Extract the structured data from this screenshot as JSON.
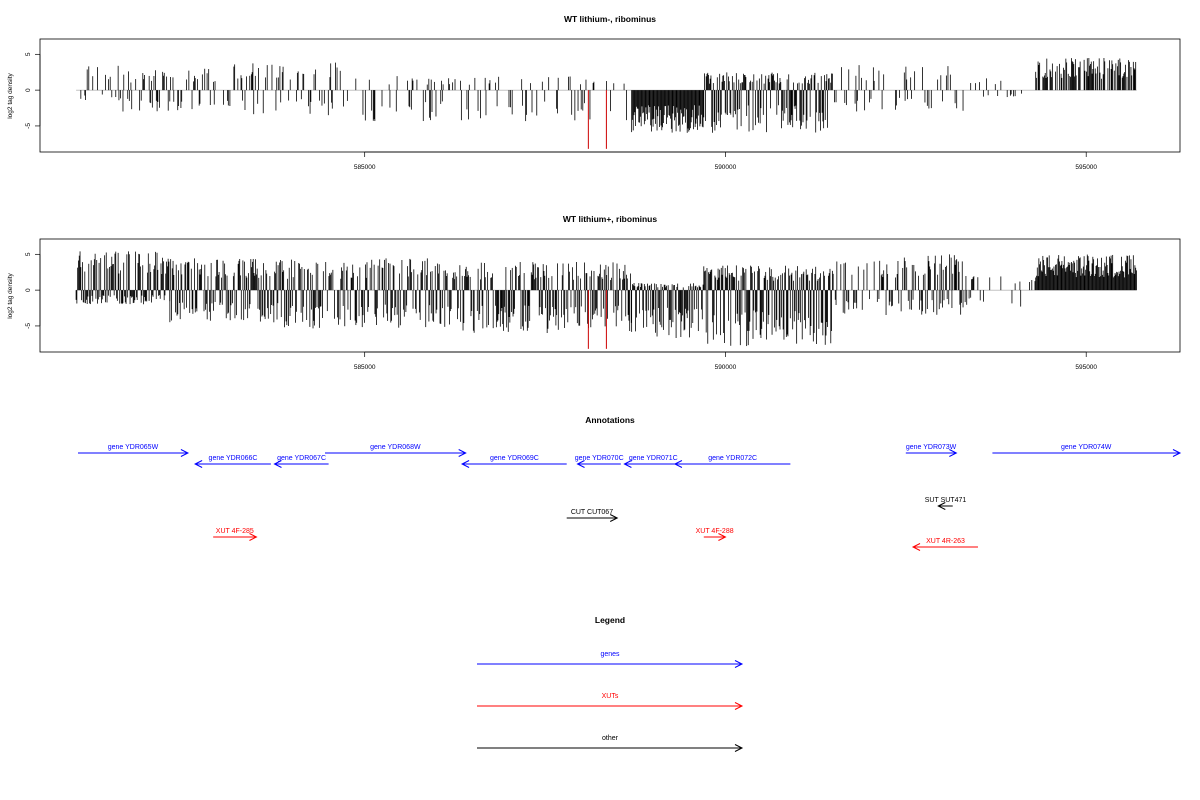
{
  "colors": {
    "gene": "#0000ff",
    "xut": "#ff0000",
    "other": "#000000",
    "bar": "#000000",
    "highlight": "#cc0000"
  },
  "x_axis": {
    "ticks": [
      585000,
      590000,
      595000
    ],
    "tick_labels": [
      "585000",
      "590000",
      "595000"
    ],
    "range": [
      580500,
      596300
    ]
  },
  "chart_data": [
    {
      "type": "bar",
      "title": "WT lithium-, ribominus",
      "ylabel": "log2 tag density",
      "ylim": [
        -8.5,
        7
      ],
      "yticks": [
        -5,
        0,
        5
      ],
      "ytick_labels": [
        "-5",
        "0",
        "5"
      ],
      "highlight_bars": [
        {
          "x": 588100,
          "value": -8.2
        },
        {
          "x": 588350,
          "value": -8.2
        }
      ],
      "density_profile": [
        {
          "start": 581000,
          "end": 581650,
          "density": 0.3,
          "up": 3.5,
          "down": 1.5
        },
        {
          "start": 581650,
          "end": 583000,
          "density": 0.5,
          "up": 3.0,
          "down": 3.0
        },
        {
          "start": 583000,
          "end": 584800,
          "density": 0.4,
          "up": 4.0,
          "down": 3.5
        },
        {
          "start": 584800,
          "end": 588700,
          "density": 0.25,
          "up": 2.0,
          "down": 4.5
        },
        {
          "start": 588700,
          "end": 589700,
          "density": 1.0,
          "up": 0.5,
          "down": 6.0
        },
        {
          "start": 589700,
          "end": 591500,
          "density": 0.9,
          "up": 2.5,
          "down": 6.0
        },
        {
          "start": 591500,
          "end": 593300,
          "density": 0.3,
          "up": 3.5,
          "down": 3.0
        },
        {
          "start": 593300,
          "end": 594300,
          "density": 0.15,
          "up": 2.0,
          "down": 1.0
        },
        {
          "start": 594300,
          "end": 595700,
          "density": 0.7,
          "up": 4.5,
          "down": 0.3
        }
      ]
    },
    {
      "type": "bar",
      "title": "WT lithium+, ribominus",
      "ylabel": "log2 tag density",
      "ylim": [
        -8.5,
        7
      ],
      "yticks": [
        -5,
        0,
        5
      ],
      "ytick_labels": [
        "-5",
        "0",
        "5"
      ],
      "highlight_bars": [
        {
          "x": 588100,
          "value": -8.2
        },
        {
          "x": 588350,
          "value": -8.2
        }
      ],
      "density_profile": [
        {
          "start": 581000,
          "end": 582300,
          "density": 1.0,
          "up": 5.5,
          "down": 2.0
        },
        {
          "start": 582300,
          "end": 583800,
          "density": 0.9,
          "up": 4.5,
          "down": 4.5
        },
        {
          "start": 583800,
          "end": 586000,
          "density": 0.8,
          "up": 4.5,
          "down": 5.5
        },
        {
          "start": 586000,
          "end": 588700,
          "density": 0.8,
          "up": 4.0,
          "down": 6.0
        },
        {
          "start": 588700,
          "end": 589700,
          "density": 1.0,
          "up": 1.0,
          "down": 7.0
        },
        {
          "start": 589700,
          "end": 591500,
          "density": 1.0,
          "up": 3.5,
          "down": 8.0
        },
        {
          "start": 591500,
          "end": 593300,
          "density": 0.6,
          "up": 5.0,
          "down": 3.5
        },
        {
          "start": 593300,
          "end": 594300,
          "density": 0.2,
          "up": 2.0,
          "down": 2.5
        },
        {
          "start": 594300,
          "end": 595700,
          "density": 1.0,
          "up": 5.0,
          "down": 0.5
        }
      ]
    }
  ],
  "annotations": {
    "title": "Annotations",
    "features": [
      {
        "label": "gene YDR065W",
        "type": "gene",
        "start": 580450,
        "end": 582550,
        "strand": "+",
        "row": 0
      },
      {
        "label": "gene YDR066C",
        "type": "gene",
        "start": 582650,
        "end": 583700,
        "strand": "-",
        "row": 1
      },
      {
        "label": "gene YDR067C",
        "type": "gene",
        "start": 583750,
        "end": 584500,
        "strand": "-",
        "row": 1
      },
      {
        "label": "gene YDR068W",
        "type": "gene",
        "start": 584450,
        "end": 586400,
        "strand": "+",
        "row": 0
      },
      {
        "label": "gene YDR069C",
        "type": "gene",
        "start": 586350,
        "end": 587800,
        "strand": "-",
        "row": 1
      },
      {
        "label": "gene YDR070C",
        "type": "gene",
        "start": 587950,
        "end": 588550,
        "strand": "-",
        "row": 1
      },
      {
        "label": "gene YDR071C",
        "type": "gene",
        "start": 588600,
        "end": 589400,
        "strand": "-",
        "row": 1
      },
      {
        "label": "gene YDR072C",
        "type": "gene",
        "start": 589300,
        "end": 590900,
        "strand": "-",
        "row": 1
      },
      {
        "label": "gene YDR073W",
        "type": "gene",
        "start": 592500,
        "end": 593200,
        "strand": "+",
        "row": 0
      },
      {
        "label": "gene YDR074W",
        "type": "gene",
        "start": 593700,
        "end": 596500,
        "strand": "+",
        "row": 0
      },
      {
        "label": "CUT CUT067",
        "type": "other",
        "start": 587800,
        "end": 588500,
        "strand": "+",
        "row": 2
      },
      {
        "label": "SUT SUT471",
        "type": "other",
        "start": 592950,
        "end": 593150,
        "strand": "-",
        "row": 3
      },
      {
        "label": "XUT 4F-285",
        "type": "xut",
        "start": 582900,
        "end": 583500,
        "strand": "+",
        "row": 4
      },
      {
        "label": "XUT 4F-288",
        "type": "xut",
        "start": 589700,
        "end": 590000,
        "strand": "+",
        "row": 4
      },
      {
        "label": "XUT 4R-263",
        "type": "xut",
        "start": 592600,
        "end": 593500,
        "strand": "-",
        "row": 5
      }
    ]
  },
  "legend": {
    "title": "Legend",
    "items": [
      {
        "label": "genes",
        "type": "gene"
      },
      {
        "label": "XUTs",
        "type": "xut"
      },
      {
        "label": "other",
        "type": "other"
      }
    ]
  }
}
